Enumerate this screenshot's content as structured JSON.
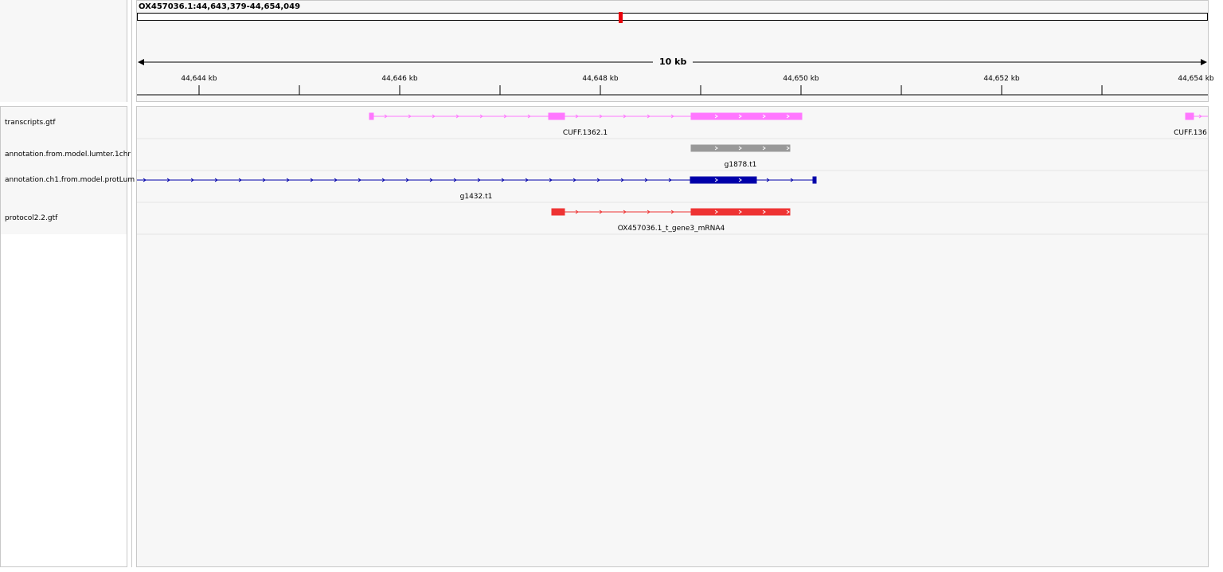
{
  "locus": "OX457036.1:44,643,379-44,654,049",
  "span_label": "10 kb",
  "ruler": {
    "ticks": [
      "44,644 kb",
      "44,646 kb",
      "44,648 kb",
      "44,650 kb",
      "44,652 kb",
      "44,654 kb"
    ]
  },
  "tracks": [
    {
      "name": "transcripts.gtf",
      "color": "#ff77ff",
      "features": [
        "CUFF.1362.1",
        "CUFF.136"
      ]
    },
    {
      "name": "annotation.from.model.lumter.1chr",
      "color": "#999999",
      "features": [
        "g1878.t1"
      ]
    },
    {
      "name": "annotation.ch1.from.model.protLum",
      "color": "#0000aa",
      "features": [
        "g1432.t1"
      ]
    },
    {
      "name": "protocol2.2.gtf",
      "color": "#ee3333",
      "features": [
        "OX457036.1_t_gene3_mRNA4"
      ]
    }
  ],
  "colors": {
    "ideogram_marker": "#e8000b",
    "panel_bg": "#f7f7f7",
    "border": "#c8c8c8"
  }
}
